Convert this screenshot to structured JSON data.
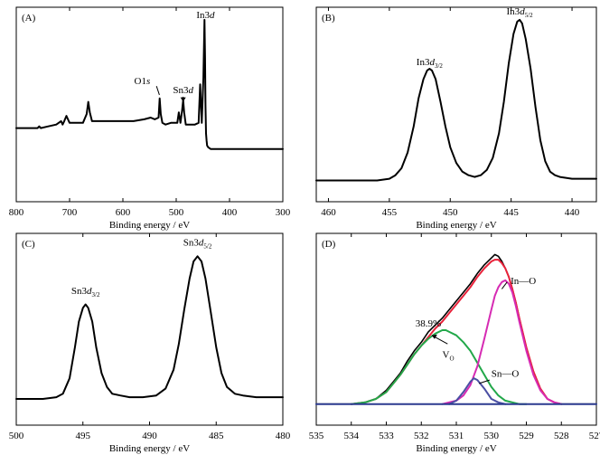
{
  "chart_data": [
    {
      "panel": "(A)",
      "type": "line",
      "xlabel": "Binding energy / eV",
      "ylabel": "",
      "xlim": [
        800,
        300
      ],
      "ylim": [
        0,
        1
      ],
      "xticks": [
        800,
        700,
        600,
        500,
        400,
        300
      ],
      "grid": false,
      "annotations": [
        {
          "id": "in3d",
          "pre": "In3",
          "it": "d",
          "x": 445,
          "y": 0.97
        },
        {
          "id": "o1s",
          "pre": "O1",
          "it": "s",
          "x": 540,
          "y": 0.6
        },
        {
          "id": "sn3d",
          "pre": "Sn3",
          "it": "d",
          "x": 487,
          "y": 0.56
        }
      ],
      "series": [
        {
          "color": "#000000",
          "x": [
            800,
            790,
            780,
            770,
            760,
            757,
            754,
            740,
            725,
            716,
            713,
            710,
            706,
            703,
            700,
            690,
            675,
            668,
            665,
            662,
            658,
            650,
            620,
            600,
            580,
            560,
            548,
            540,
            533,
            531,
            529,
            526,
            520,
            510,
            498,
            495,
            492,
            489,
            487,
            485,
            482,
            476,
            465,
            458,
            455,
            452,
            449,
            447,
            446,
            445,
            444,
            443,
            442,
            440,
            435,
            420,
            400,
            380,
            350,
            320,
            300
          ],
          "y": [
            0.37,
            0.37,
            0.37,
            0.37,
            0.37,
            0.38,
            0.37,
            0.38,
            0.39,
            0.41,
            0.39,
            0.41,
            0.44,
            0.42,
            0.4,
            0.4,
            0.4,
            0.45,
            0.52,
            0.46,
            0.41,
            0.41,
            0.41,
            0.41,
            0.41,
            0.42,
            0.43,
            0.42,
            0.43,
            0.54,
            0.45,
            0.4,
            0.39,
            0.4,
            0.4,
            0.46,
            0.4,
            0.47,
            0.53,
            0.46,
            0.39,
            0.39,
            0.39,
            0.4,
            0.62,
            0.4,
            0.66,
            0.99,
            0.78,
            0.5,
            0.34,
            0.3,
            0.27,
            0.26,
            0.25,
            0.25,
            0.25,
            0.25,
            0.25,
            0.25,
            0.25
          ]
        }
      ]
    },
    {
      "panel": "(B)",
      "type": "line",
      "xlabel": "Binding energy / eV",
      "ylabel": "",
      "xlim": [
        461,
        438
      ],
      "ylim": [
        0,
        1
      ],
      "xticks": [
        460,
        455,
        450,
        445,
        440
      ],
      "grid": false,
      "annotations": [
        {
          "id": "in3d32",
          "pre": "In3",
          "it": "d",
          "sub": "3/2",
          "x": 451.7,
          "y": 0.7
        },
        {
          "id": "in3d52",
          "pre": "In3",
          "it": "d",
          "sub": "5/2",
          "x": 444.3,
          "y": 0.99
        }
      ],
      "series": [
        {
          "color": "#000000",
          "x": [
            461,
            460,
            459,
            458,
            457,
            456,
            455,
            454.5,
            454,
            453.5,
            453,
            452.6,
            452.2,
            451.9,
            451.7,
            451.5,
            451.2,
            450.8,
            450.4,
            450,
            449.5,
            449,
            448.5,
            448,
            447.5,
            447,
            446.5,
            446,
            445.6,
            445.2,
            444.8,
            444.5,
            444.3,
            444.1,
            443.8,
            443.4,
            443,
            442.6,
            442.2,
            441.8,
            441.4,
            441,
            440,
            439,
            438
          ],
          "y": [
            0.07,
            0.07,
            0.07,
            0.07,
            0.07,
            0.07,
            0.08,
            0.1,
            0.14,
            0.23,
            0.38,
            0.54,
            0.65,
            0.7,
            0.71,
            0.7,
            0.65,
            0.52,
            0.38,
            0.26,
            0.17,
            0.12,
            0.1,
            0.09,
            0.1,
            0.13,
            0.2,
            0.34,
            0.52,
            0.74,
            0.91,
            0.98,
            0.99,
            0.97,
            0.88,
            0.71,
            0.49,
            0.3,
            0.18,
            0.12,
            0.1,
            0.09,
            0.08,
            0.08,
            0.08
          ]
        }
      ]
    },
    {
      "panel": "(C)",
      "type": "line",
      "xlabel": "Binding energy / eV",
      "ylabel": "",
      "xlim": [
        500,
        480
      ],
      "ylim": [
        0,
        1
      ],
      "xticks": [
        500,
        495,
        490,
        485,
        480
      ],
      "grid": false,
      "annotations": [
        {
          "id": "sn3d32",
          "pre": "Sn3",
          "it": "d",
          "sub": "3/2",
          "x": 494.8,
          "y": 0.68
        },
        {
          "id": "sn3d52",
          "pre": "Sn3",
          "it": "d",
          "sub": "5/2",
          "x": 486.4,
          "y": 0.96
        }
      ],
      "series": [
        {
          "color": "#000000",
          "x": [
            500,
            499,
            498,
            497,
            496.5,
            496,
            495.6,
            495.3,
            495,
            494.8,
            494.6,
            494.3,
            494,
            493.6,
            493.2,
            492.8,
            492.2,
            491.5,
            490.5,
            489.5,
            488.8,
            488.2,
            487.8,
            487.4,
            487,
            486.7,
            486.4,
            486.1,
            485.8,
            485.4,
            485,
            484.6,
            484.2,
            483.6,
            483,
            482,
            481,
            480
          ],
          "y": [
            0.1,
            0.1,
            0.1,
            0.11,
            0.13,
            0.22,
            0.4,
            0.55,
            0.63,
            0.65,
            0.63,
            0.55,
            0.4,
            0.25,
            0.17,
            0.13,
            0.12,
            0.11,
            0.11,
            0.12,
            0.16,
            0.27,
            0.42,
            0.62,
            0.8,
            0.9,
            0.93,
            0.9,
            0.8,
            0.6,
            0.4,
            0.25,
            0.17,
            0.13,
            0.12,
            0.11,
            0.11,
            0.11
          ]
        }
      ]
    },
    {
      "panel": "(D)",
      "type": "line",
      "xlabel": "Binding energy / eV",
      "ylabel": "",
      "xlim": [
        535,
        527
      ],
      "ylim": [
        0,
        1
      ],
      "xticks": [
        535,
        534,
        533,
        532,
        531,
        530,
        529,
        528,
        527
      ],
      "grid": false,
      "annotations": [
        {
          "id": "in-o",
          "pre": "In—O",
          "x": 529.5,
          "y": 0.79
        },
        {
          "id": "pct",
          "pre": "38.9%",
          "x": 531.8,
          "y": 0.52
        },
        {
          "id": "vo",
          "pre": "V",
          "sub": "O",
          "x": 531.4,
          "y": 0.34
        },
        {
          "id": "sn-o",
          "pre": "Sn—O",
          "x": 530.0,
          "y": 0.23
        }
      ],
      "series": [
        {
          "color": "#000000",
          "x": [
            535,
            534.5,
            534,
            533.6,
            533.3,
            533,
            532.8,
            532.6,
            532.4,
            532.2,
            532,
            531.8,
            531.6,
            531.4,
            531.2,
            531,
            530.8,
            530.6,
            530.5,
            530.4,
            530.2,
            530,
            529.9,
            529.8,
            529.7,
            529.6,
            529.5,
            529.4,
            529.3,
            529.2,
            529,
            528.8,
            528.6,
            528.4,
            528.2,
            528,
            527.6,
            527
          ],
          "y": [
            0.07,
            0.07,
            0.07,
            0.08,
            0.1,
            0.15,
            0.2,
            0.25,
            0.32,
            0.38,
            0.43,
            0.49,
            0.53,
            0.57,
            0.62,
            0.67,
            0.72,
            0.77,
            0.8,
            0.83,
            0.88,
            0.92,
            0.94,
            0.93,
            0.9,
            0.86,
            0.81,
            0.74,
            0.66,
            0.57,
            0.4,
            0.26,
            0.16,
            0.1,
            0.08,
            0.07,
            0.07,
            0.07
          ]
        },
        {
          "color": "#e8223a",
          "x": [
            534,
            533.6,
            533.3,
            533,
            532.8,
            532.6,
            532.4,
            532.2,
            532,
            531.8,
            531.6,
            531.4,
            531.2,
            531,
            530.8,
            530.6,
            530.4,
            530.2,
            530,
            529.9,
            529.8,
            529.7,
            529.6,
            529.5,
            529.4,
            529.3,
            529.2,
            529,
            528.8,
            528.6,
            528.4,
            528.2,
            528
          ],
          "y": [
            0.07,
            0.08,
            0.1,
            0.14,
            0.19,
            0.24,
            0.3,
            0.36,
            0.41,
            0.46,
            0.51,
            0.55,
            0.6,
            0.65,
            0.7,
            0.75,
            0.81,
            0.86,
            0.9,
            0.91,
            0.91,
            0.89,
            0.86,
            0.81,
            0.74,
            0.66,
            0.57,
            0.4,
            0.26,
            0.16,
            0.1,
            0.08,
            0.07
          ]
        },
        {
          "color": "#22a84a",
          "x": [
            534,
            533.6,
            533.3,
            533,
            532.8,
            532.6,
            532.4,
            532.2,
            532,
            531.8,
            531.6,
            531.4,
            531.3,
            531.2,
            531,
            530.8,
            530.6,
            530.4,
            530.2,
            530,
            529.8,
            529.6,
            529.4,
            529.2,
            529
          ],
          "y": [
            0.07,
            0.08,
            0.1,
            0.14,
            0.19,
            0.24,
            0.3,
            0.36,
            0.41,
            0.45,
            0.48,
            0.5,
            0.5,
            0.49,
            0.47,
            0.43,
            0.38,
            0.31,
            0.24,
            0.17,
            0.12,
            0.09,
            0.08,
            0.07,
            0.07
          ]
        },
        {
          "color": "#d62bb3",
          "x": [
            531.4,
            531,
            530.8,
            530.6,
            530.4,
            530.2,
            530,
            529.9,
            529.8,
            529.7,
            529.6,
            529.5,
            529.4,
            529.3,
            529.2,
            529,
            528.8,
            528.6,
            528.4,
            528.2,
            528
          ],
          "y": [
            0.07,
            0.09,
            0.12,
            0.18,
            0.29,
            0.45,
            0.62,
            0.7,
            0.75,
            0.78,
            0.79,
            0.77,
            0.72,
            0.64,
            0.55,
            0.38,
            0.24,
            0.15,
            0.1,
            0.08,
            0.07
          ]
        },
        {
          "color": "#4a4fa3",
          "x": [
            531.2,
            531,
            530.8,
            530.6,
            530.5,
            530.4,
            530.2,
            530,
            529.8,
            529.6
          ],
          "y": [
            0.07,
            0.09,
            0.14,
            0.2,
            0.22,
            0.21,
            0.16,
            0.1,
            0.08,
            0.07
          ]
        },
        {
          "color": "#2b3a8f",
          "x": [
            535,
            527
          ],
          "y": [
            0.07,
            0.07
          ]
        }
      ]
    }
  ]
}
